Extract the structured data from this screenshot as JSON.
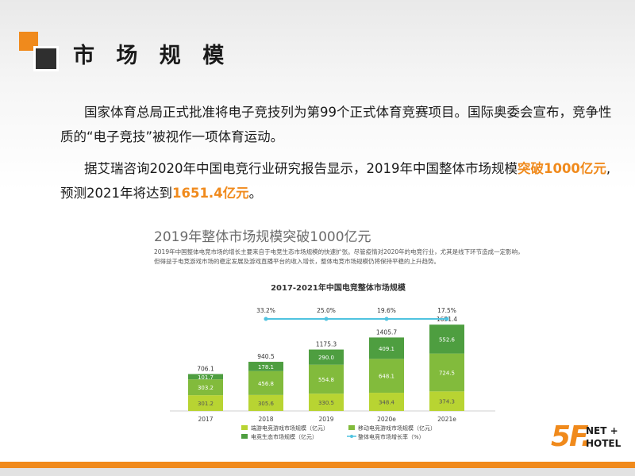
{
  "slide": {
    "title": "市 场 规 模",
    "paragraph1": "国家体育总局正式批准将电子竞技列为第99个正式体育竞赛项目。国际奥委会宣布，竞争性质的“电子竞技”被视作一项体育运动。",
    "paragraph2_prefix": "据艾瑞咨询2020年中国电竞行业研究报告显示，2019年中国整体市场规模",
    "paragraph2_hl1": "突破1000亿元",
    "paragraph2_mid": ",预测2021年将达到",
    "paragraph2_hl2": "1651.4亿元",
    "paragraph2_suffix": "。",
    "accent_color": "#f08a1c"
  },
  "report": {
    "heading": "2019年整体市场规模突破1000亿元",
    "description": "2019年中国整体电竞市场的增长主要来自于电竞生态市场规模的快速扩张。尽管疫情对2020年的电竞行业，尤其是线下环节造成一定影响，但得益于电竞游戏市场的稳定发展及游戏直播平台的收入增长，整体电竞市场规模仍将保持平稳的上升趋势。"
  },
  "chart_data": {
    "type": "bar",
    "stacked": true,
    "title": "2017-2021年中国电竞整体市场规模",
    "categories": [
      "2017",
      "2018",
      "2019",
      "2020e",
      "2021e"
    ],
    "series": [
      {
        "name": "端游电竞游戏市场规模（亿元）",
        "color": "#b8d432",
        "values": [
          301.2,
          305.6,
          330.5,
          348.4,
          374.3
        ]
      },
      {
        "name": "移动电竞游戏市场规模（亿元）",
        "color": "#82bb3c",
        "values": [
          303.2,
          456.8,
          554.8,
          648.1,
          724.5
        ]
      },
      {
        "name": "电竞生态市场规模（亿元）",
        "color": "#4e9e40",
        "values": [
          101.7,
          178.1,
          290.0,
          409.1,
          552.6
        ]
      }
    ],
    "totals": [
      "706.1",
      "940.5",
      "1175.3",
      "1405.7",
      "1651.4"
    ],
    "growth_series": {
      "name": "整体电竞市场增长率（%）",
      "color": "#4fc3e0",
      "values": [
        33.2,
        25.0,
        19.6,
        17.5
      ],
      "labels": [
        "33.2%",
        "25.0%",
        "19.6%",
        "17.5%"
      ]
    },
    "legend": "bottom",
    "grid": false,
    "ylim": [
      0,
      1800
    ]
  },
  "logo": {
    "mark": "5F.",
    "line1": "NET +",
    "line2": "HOTEL"
  }
}
